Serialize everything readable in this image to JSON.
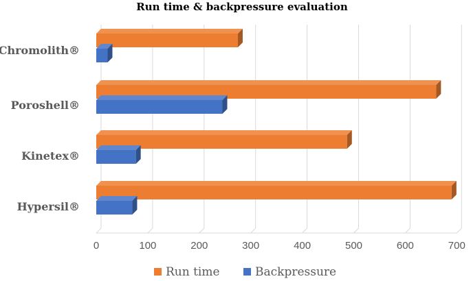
{
  "chart_data": {
    "type": "bar",
    "orientation": "horizontal",
    "three_d": true,
    "title": "Run time & backpressure evaluation",
    "categories": [
      "Chromolith®",
      "Poroshell®",
      "Kinetex®",
      "Hypersil®"
    ],
    "series": [
      {
        "name": "Run time",
        "color": "#ed7d31",
        "values": [
          275,
          660,
          487,
          690
        ]
      },
      {
        "name": "Backpressure",
        "color": "#4472c4",
        "values": [
          22,
          245,
          77,
          70
        ]
      }
    ],
    "x_ticks": [
      "0",
      "100",
      "200",
      "300",
      "400",
      "500",
      "600",
      "700"
    ],
    "xlim": [
      0,
      700
    ],
    "grid": true,
    "legend_position": "bottom"
  }
}
